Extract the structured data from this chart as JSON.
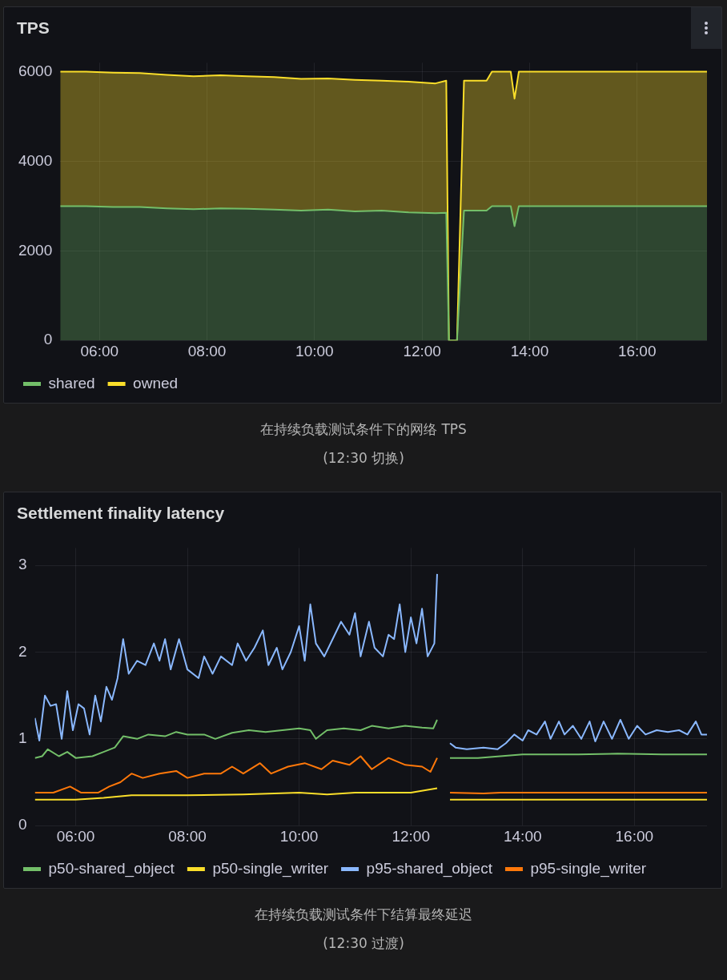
{
  "chart_data": [
    {
      "type": "area",
      "title": "TPS",
      "stacked": true,
      "grid": true,
      "legend": "bottom",
      "marker": "none",
      "x": [
        5.27,
        5.75,
        6.25,
        6.75,
        7.25,
        7.75,
        8.25,
        8.75,
        9.25,
        9.75,
        10.25,
        10.75,
        11.25,
        11.75,
        12.25,
        12.45,
        12.5,
        12.65,
        12.78,
        13.2,
        13.3,
        13.65,
        13.72,
        13.8,
        14.5,
        15.5,
        16.5,
        17.3
      ],
      "series": [
        {
          "name": "shared",
          "color": "#73bf69",
          "values": [
            3000,
            3000,
            2980,
            2980,
            2950,
            2930,
            2950,
            2940,
            2920,
            2900,
            2920,
            2880,
            2900,
            2860,
            2840,
            2850,
            0,
            0,
            2900,
            2900,
            3000,
            3000,
            2550,
            3000,
            3000,
            3000,
            3000,
            3000
          ]
        },
        {
          "name": "owned",
          "color": "#fade2a",
          "values": [
            3000,
            3000,
            3000,
            2990,
            2980,
            2970,
            2970,
            2960,
            2960,
            2940,
            2930,
            2940,
            2900,
            2920,
            2900,
            2950,
            0,
            0,
            2900,
            2900,
            3000,
            3000,
            2850,
            3000,
            3000,
            3000,
            3000,
            3000
          ]
        }
      ],
      "xlim": [
        5.27,
        17.3
      ],
      "xticks": [
        {
          "value": 6,
          "label": "06:00"
        },
        {
          "value": 8,
          "label": "08:00"
        },
        {
          "value": 10,
          "label": "10:00"
        },
        {
          "value": 12,
          "label": "12:00"
        },
        {
          "value": 14,
          "label": "14:00"
        },
        {
          "value": 16,
          "label": "16:00"
        }
      ],
      "ylim": [
        0,
        6200
      ],
      "yticks": [
        0,
        2000,
        4000,
        6000
      ],
      "annotations": [
        "在持续负载测试条件下的网络 TPS",
        "(12:30 切换)"
      ]
    },
    {
      "type": "line",
      "title": "Settlement finality latency",
      "grid": true,
      "legend": "bottom",
      "marker": "none",
      "line_style": "solid",
      "series": [
        {
          "name": "p50-shared_object",
          "color": "#73bf69",
          "x": [
            5.27,
            5.4,
            5.5,
            5.7,
            5.85,
            6.0,
            6.3,
            6.5,
            6.7,
            6.85,
            7.1,
            7.3,
            7.6,
            7.8,
            8.0,
            8.3,
            8.5,
            8.8,
            9.1,
            9.4,
            9.7,
            10.0,
            10.2,
            10.3,
            10.5,
            10.8,
            11.1,
            11.3,
            11.6,
            11.9,
            12.2,
            12.4,
            12.47,
            12.6,
            12.7,
            13.2,
            13.6,
            14.0,
            15.0,
            15.7,
            16.5,
            17.3
          ],
          "values": [
            0.78,
            0.8,
            0.88,
            0.8,
            0.85,
            0.78,
            0.8,
            0.85,
            0.9,
            1.03,
            1.0,
            1.05,
            1.03,
            1.08,
            1.05,
            1.05,
            1.0,
            1.07,
            1.1,
            1.08,
            1.1,
            1.12,
            1.1,
            1.0,
            1.1,
            1.12,
            1.1,
            1.15,
            1.12,
            1.15,
            1.13,
            1.12,
            1.22,
            null,
            0.78,
            0.78,
            0.8,
            0.82,
            0.82,
            0.83,
            0.82,
            0.82
          ]
        },
        {
          "name": "p50-single_writer",
          "color": "#fade2a",
          "x": [
            5.27,
            6.0,
            6.5,
            7.0,
            8.0,
            9.0,
            10.0,
            10.5,
            11.0,
            12.0,
            12.47,
            12.6,
            12.7,
            13.5,
            17.3
          ],
          "values": [
            0.3,
            0.3,
            0.32,
            0.35,
            0.35,
            0.36,
            0.38,
            0.36,
            0.38,
            0.38,
            0.43,
            null,
            0.3,
            0.3,
            0.3
          ]
        },
        {
          "name": "p95-shared_object",
          "color": "#8ab8ff",
          "x": [
            5.27,
            5.35,
            5.45,
            5.55,
            5.65,
            5.75,
            5.85,
            5.95,
            6.05,
            6.15,
            6.25,
            6.35,
            6.45,
            6.55,
            6.65,
            6.75,
            6.85,
            6.95,
            7.1,
            7.25,
            7.4,
            7.5,
            7.6,
            7.7,
            7.85,
            8.0,
            8.2,
            8.3,
            8.45,
            8.6,
            8.8,
            8.9,
            9.05,
            9.2,
            9.35,
            9.45,
            9.6,
            9.7,
            9.85,
            10.0,
            10.1,
            10.2,
            10.3,
            10.45,
            10.6,
            10.75,
            10.9,
            11.0,
            11.1,
            11.25,
            11.35,
            11.5,
            11.6,
            11.7,
            11.8,
            11.9,
            12.0,
            12.1,
            12.2,
            12.3,
            12.42,
            12.47,
            12.6,
            12.7,
            12.8,
            13.0,
            13.3,
            13.55,
            13.7,
            13.85,
            14.0,
            14.1,
            14.25,
            14.4,
            14.5,
            14.65,
            14.75,
            14.9,
            15.05,
            15.2,
            15.3,
            15.45,
            15.6,
            15.75,
            15.9,
            16.05,
            16.2,
            16.4,
            16.6,
            16.8,
            16.95,
            17.1,
            17.2,
            17.3
          ],
          "values": [
            1.24,
            0.98,
            1.5,
            1.38,
            1.4,
            1.0,
            1.55,
            1.1,
            1.4,
            1.35,
            1.05,
            1.5,
            1.2,
            1.6,
            1.45,
            1.7,
            2.15,
            1.75,
            1.9,
            1.85,
            2.1,
            1.9,
            2.15,
            1.8,
            2.15,
            1.8,
            1.7,
            1.95,
            1.75,
            1.95,
            1.85,
            2.1,
            1.9,
            2.05,
            2.25,
            1.85,
            2.05,
            1.8,
            2.0,
            2.3,
            1.9,
            2.55,
            2.1,
            1.95,
            2.15,
            2.35,
            2.2,
            2.45,
            1.95,
            2.35,
            2.05,
            1.95,
            2.2,
            2.15,
            2.55,
            2.0,
            2.4,
            2.1,
            2.5,
            1.95,
            2.1,
            2.9,
            null,
            0.95,
            0.9,
            0.88,
            0.9,
            0.88,
            0.95,
            1.05,
            0.98,
            1.1,
            1.05,
            1.2,
            1.0,
            1.2,
            1.05,
            1.15,
            1.0,
            1.2,
            0.97,
            1.2,
            1.0,
            1.22,
            1.0,
            1.15,
            1.05,
            1.1,
            1.08,
            1.1,
            1.05,
            1.2,
            1.05,
            1.05
          ]
        },
        {
          "name": "p95-single_writer",
          "color": "#ff780a",
          "x": [
            5.27,
            5.6,
            5.9,
            6.1,
            6.4,
            6.6,
            6.8,
            7.0,
            7.2,
            7.5,
            7.8,
            8.0,
            8.3,
            8.6,
            8.8,
            9.0,
            9.3,
            9.5,
            9.8,
            10.1,
            10.4,
            10.6,
            10.9,
            11.1,
            11.3,
            11.6,
            11.9,
            12.2,
            12.35,
            12.47,
            12.6,
            12.7,
            13.3,
            13.6,
            17.3
          ],
          "values": [
            0.38,
            0.38,
            0.45,
            0.38,
            0.38,
            0.45,
            0.5,
            0.6,
            0.55,
            0.6,
            0.63,
            0.55,
            0.6,
            0.6,
            0.68,
            0.6,
            0.72,
            0.6,
            0.68,
            0.72,
            0.65,
            0.75,
            0.7,
            0.8,
            0.65,
            0.78,
            0.7,
            0.68,
            0.62,
            0.78,
            null,
            0.38,
            0.37,
            0.38,
            0.38
          ]
        }
      ],
      "xlim": [
        5.27,
        17.3
      ],
      "xticks": [
        {
          "value": 6,
          "label": "06:00"
        },
        {
          "value": 8,
          "label": "08:00"
        },
        {
          "value": 10,
          "label": "10:00"
        },
        {
          "value": 12,
          "label": "12:00"
        },
        {
          "value": 14,
          "label": "14:00"
        },
        {
          "value": 16,
          "label": "16:00"
        }
      ],
      "ylim": [
        0,
        3.2
      ],
      "yticks": [
        0,
        1,
        2,
        3
      ],
      "annotations": [
        "在持续负载测试条件下结算最终延迟",
        "(12:30 过渡)"
      ]
    }
  ]
}
